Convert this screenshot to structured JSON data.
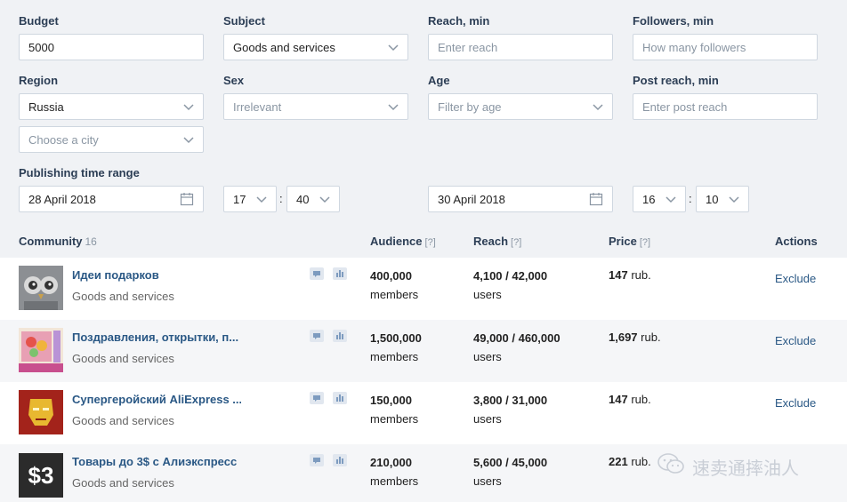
{
  "filters": {
    "budget": {
      "label": "Budget",
      "value": "5000"
    },
    "subject": {
      "label": "Subject",
      "value": "Goods and services"
    },
    "reach_min": {
      "label": "Reach, min",
      "placeholder": "Enter reach"
    },
    "followers_min": {
      "label": "Followers, min",
      "placeholder": "How many followers"
    },
    "region": {
      "label": "Region",
      "value": "Russia",
      "city_placeholder": "Choose a city"
    },
    "sex": {
      "label": "Sex",
      "value": "Irrelevant"
    },
    "age": {
      "label": "Age",
      "value": "Filter by age"
    },
    "post_reach_min": {
      "label": "Post reach, min",
      "placeholder": "Enter post reach"
    },
    "publishing": {
      "label": "Publishing time range",
      "from_date": "28 April 2018",
      "from_hour": "17",
      "from_minute": "40",
      "to_date": "30 April 2018",
      "to_hour": "16",
      "to_minute": "10",
      "separator": ":"
    }
  },
  "table": {
    "headers": {
      "community": "Community",
      "community_count": "16",
      "audience": "Audience",
      "reach": "Reach",
      "price": "Price",
      "help": "[?]",
      "actions": "Actions"
    },
    "rows": [
      {
        "name": "Идеи подарков",
        "subject": "Goods and services",
        "audience": "400,000",
        "audience_unit": "members",
        "reach": "4,100 / 42,000",
        "reach_unit": "users",
        "price": "147",
        "price_unit": "rub.",
        "action": "Exclude",
        "avatar": "owls-avatar"
      },
      {
        "name": "Поздравления, открытки, п...",
        "subject": "Goods and services",
        "audience": "1,500,000",
        "audience_unit": "members",
        "reach": "49,000 / 460,000",
        "reach_unit": "users",
        "price": "1,697",
        "price_unit": "rub.",
        "action": "Exclude",
        "avatar": "postcards-avatar"
      },
      {
        "name": "Супергеройский AliExpress ...",
        "subject": "Goods and services",
        "audience": "150,000",
        "audience_unit": "members",
        "reach": "3,800 / 31,000",
        "reach_unit": "users",
        "price": "147",
        "price_unit": "rub.",
        "action": "Exclude",
        "avatar": "ironman-avatar"
      },
      {
        "name": "Товары до 3$ с Алиэкспресс",
        "subject": "Goods and services",
        "audience": "210,000",
        "audience_unit": "members",
        "reach": "5,600 / 45,000",
        "reach_unit": "users",
        "price": "221",
        "price_unit": "rub.",
        "action": "",
        "avatar": "dollar3-avatar",
        "avatar_text": "$3"
      }
    ]
  },
  "watermark": {
    "text": "速卖通摔油人"
  },
  "colors": {
    "link": "#2a5885",
    "label": "#2c3e55",
    "muted": "#8a96a3",
    "border": "#cfd7e0"
  }
}
